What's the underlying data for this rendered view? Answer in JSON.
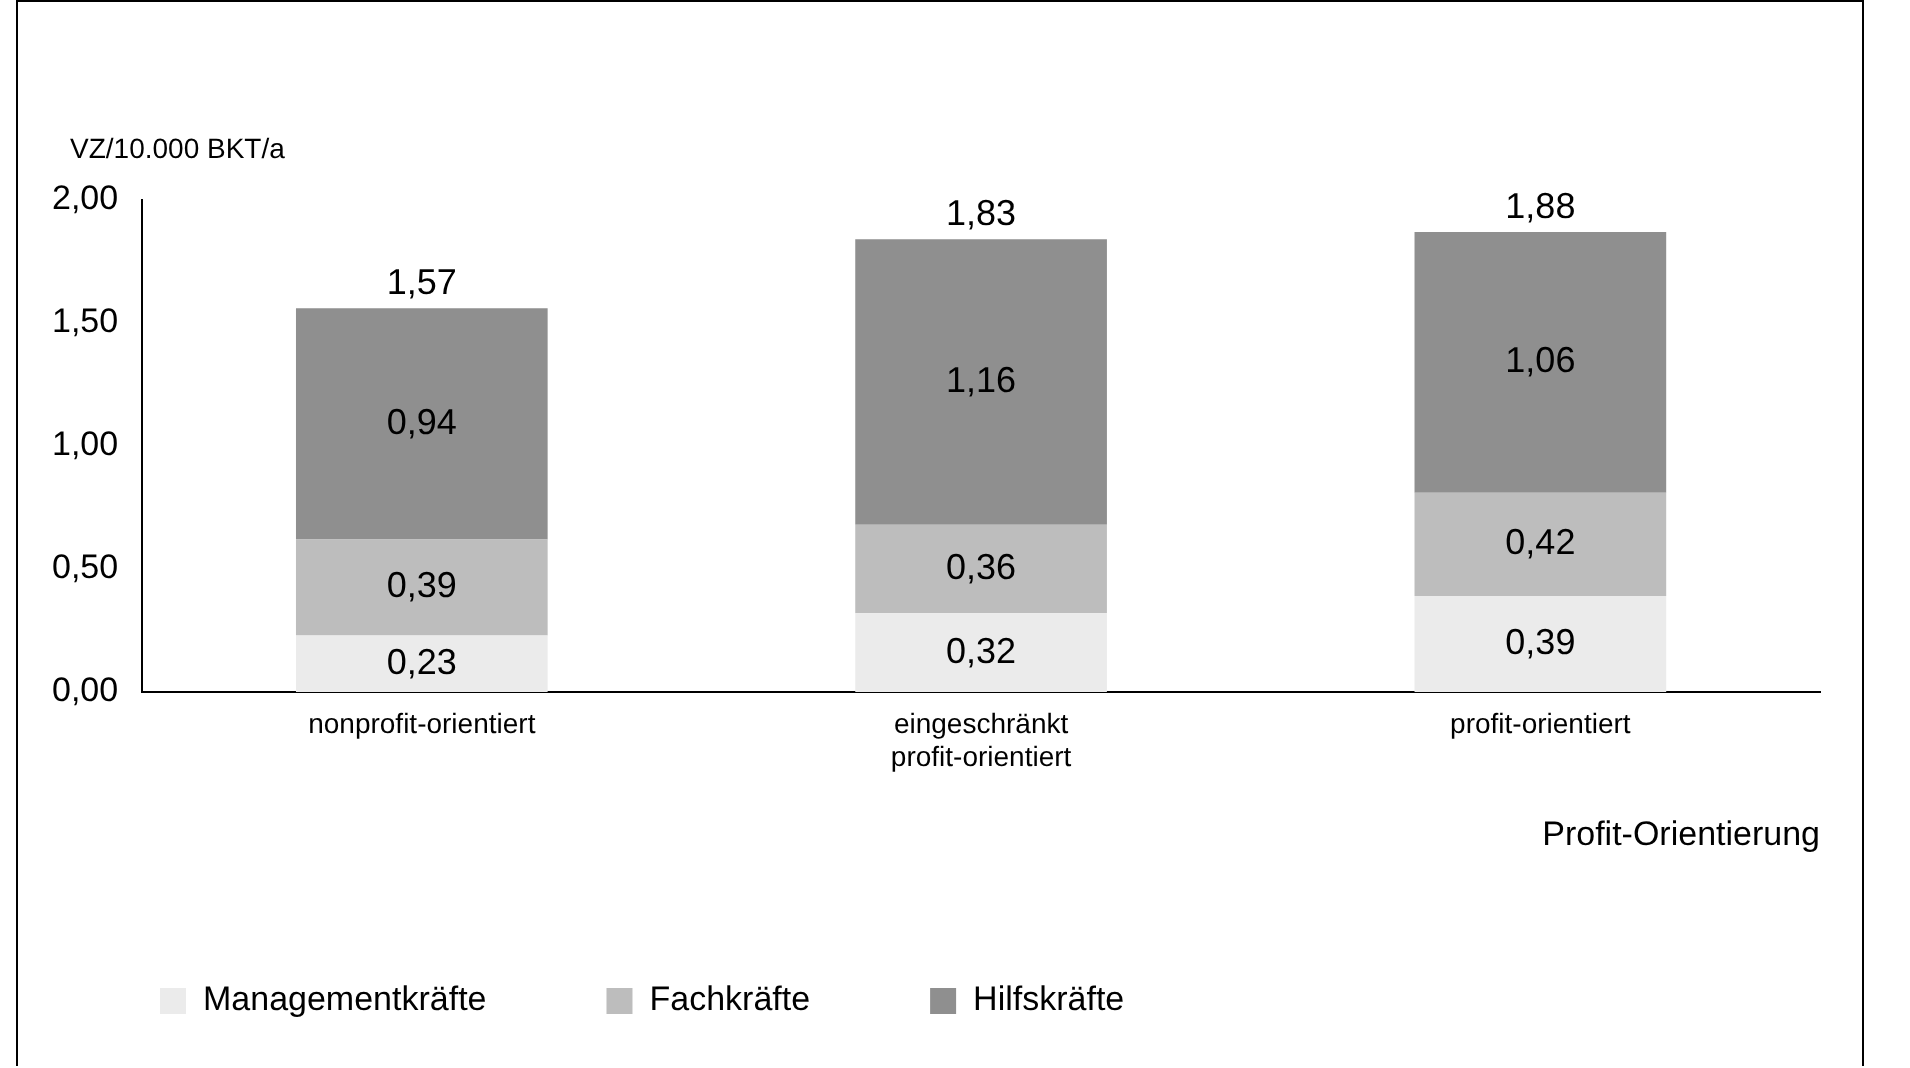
{
  "chart_data": {
    "type": "bar",
    "stacked": true,
    "ylabel": "VZ/10.000 BKT/a",
    "xlabel": "Profit-Orientierung",
    "categories": [
      "nonprofit-orientiert",
      "eingeschränkt profit-orientiert",
      "profit-orientiert"
    ],
    "series": [
      {
        "name": "Managementkräfte",
        "color": "#ebebeb",
        "values": [
          0.23,
          0.32,
          0.39
        ],
        "value_labels": [
          "0,23",
          "0,32",
          "0,39"
        ]
      },
      {
        "name": "Fachkräfte",
        "color": "#bdbdbd",
        "values": [
          0.39,
          0.36,
          0.42
        ],
        "value_labels": [
          "0,39",
          "0,36",
          "0,42"
        ]
      },
      {
        "name": "Hilfskräfte",
        "color": "#8f8f8f",
        "values": [
          0.94,
          1.16,
          1.06
        ],
        "value_labels": [
          "0,94",
          "1,16",
          "1,06"
        ]
      }
    ],
    "totals": [
      "1,57",
      "1,83",
      "1,88"
    ],
    "ylim": [
      0,
      2
    ],
    "yticks": [
      {
        "value": 0,
        "label": "0,00"
      },
      {
        "value": 0.5,
        "label": "0,50"
      },
      {
        "value": 1,
        "label": "1,00"
      },
      {
        "value": 1.5,
        "label": "1,50"
      },
      {
        "value": 2,
        "label": "2,00"
      }
    ],
    "grid": false,
    "legend": "bottom left"
  }
}
